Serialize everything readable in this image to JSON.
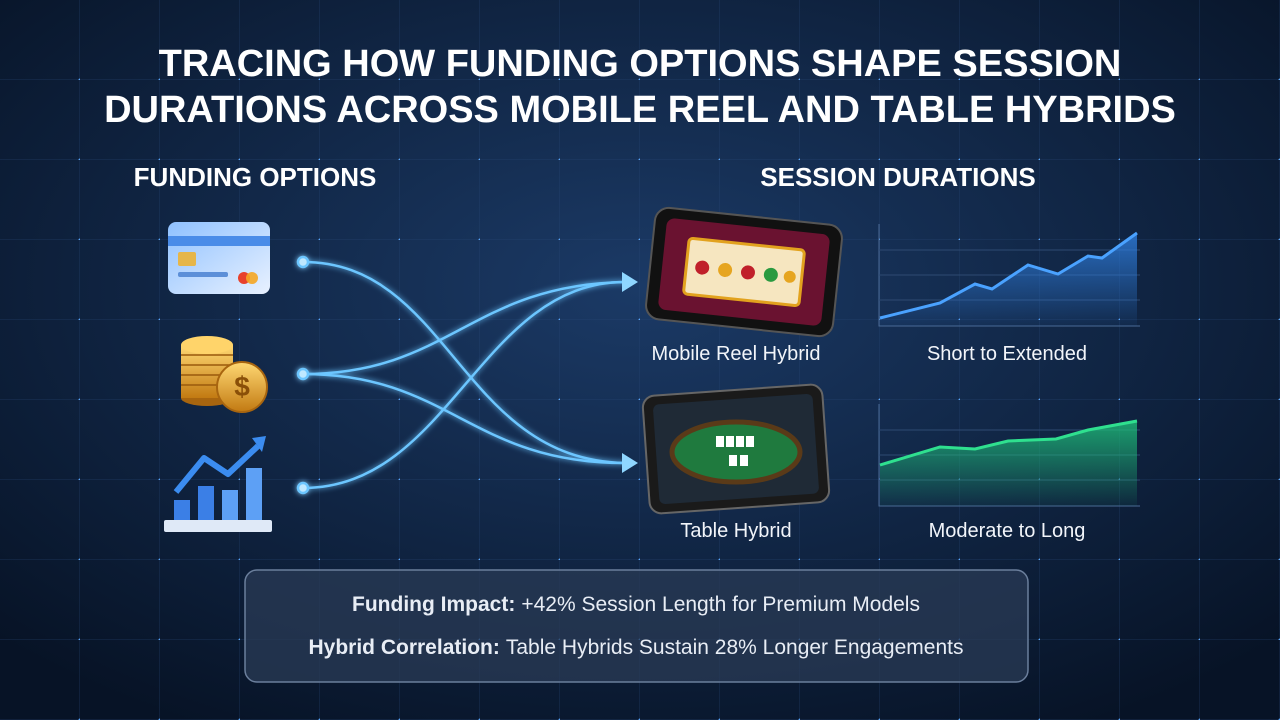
{
  "title": [
    "TRACING HOW FUNDING OPTIONS SHAPE SESSION",
    "DURATIONS ACROSS MOBILE REEL AND TABLE HYBRIDS"
  ],
  "funding": {
    "heading": "FUNDING OPTIONS"
  },
  "sessions": {
    "heading": "SESSION DURATIONS",
    "items": [
      {
        "label": "Mobile Reel Hybrid",
        "duration": "Short to Extended"
      },
      {
        "label": "Table Hybrid",
        "duration": "Moderate to Long"
      }
    ]
  },
  "summary": [
    {
      "label": "Funding Impact:",
      "text": "+42% Session Length for Premium Models"
    },
    {
      "label": "Hybrid Correlation:",
      "text": "Table Hybrids Sustain 28% Longer Engagements"
    }
  ]
}
